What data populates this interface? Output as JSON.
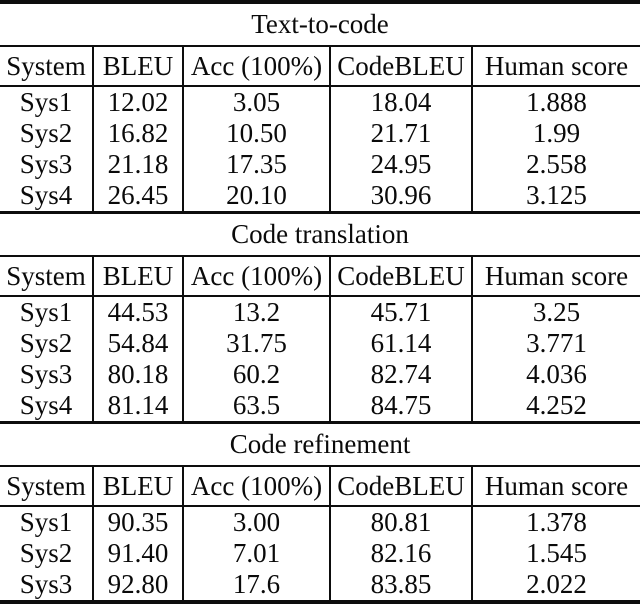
{
  "page": {
    "background_color": "#ffffff",
    "text_color": "#0a0a0a",
    "rule_color": "#0d0d0d"
  },
  "tables": [
    {
      "title": "Text-to-code",
      "columns": [
        "System",
        "BLEU",
        "Acc (100%)",
        "CodeBLEU",
        "Human score"
      ],
      "rows": [
        [
          "Sys1",
          "12.02",
          "3.05",
          "18.04",
          "1.888"
        ],
        [
          "Sys2",
          "16.82",
          "10.50",
          "21.71",
          "1.99"
        ],
        [
          "Sys3",
          "21.18",
          "17.35",
          "24.95",
          "2.558"
        ],
        [
          "Sys4",
          "26.45",
          "20.10",
          "30.96",
          "3.125"
        ]
      ]
    },
    {
      "title": "Code translation",
      "columns": [
        "System",
        "BLEU",
        "Acc (100%)",
        "CodeBLEU",
        "Human score"
      ],
      "rows": [
        [
          "Sys1",
          "44.53",
          "13.2",
          "45.71",
          "3.25"
        ],
        [
          "Sys2",
          "54.84",
          "31.75",
          "61.14",
          "3.771"
        ],
        [
          "Sys3",
          "80.18",
          "60.2",
          "82.74",
          "4.036"
        ],
        [
          "Sys4",
          "81.14",
          "63.5",
          "84.75",
          "4.252"
        ]
      ]
    },
    {
      "title": "Code refinement",
      "columns": [
        "System",
        "BLEU",
        "Acc (100%)",
        "CodeBLEU",
        "Human score"
      ],
      "rows": [
        [
          "Sys1",
          "90.35",
          "3.00",
          "80.81",
          "1.378"
        ],
        [
          "Sys2",
          "91.40",
          "7.01",
          "82.16",
          "1.545"
        ],
        [
          "Sys3",
          "92.80",
          "17.6",
          "83.85",
          "2.022"
        ]
      ]
    }
  ]
}
